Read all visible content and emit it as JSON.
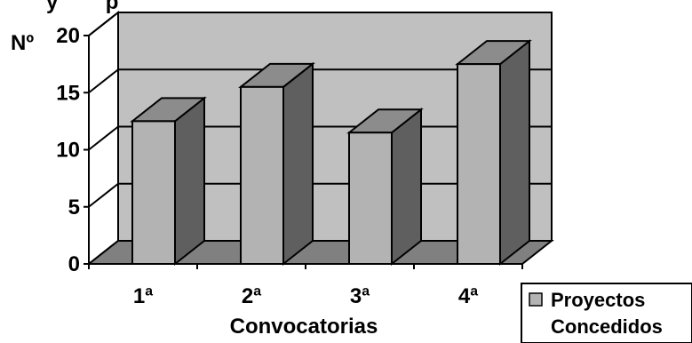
{
  "chart_data": {
    "type": "bar",
    "title_fragment": "y        p",
    "ylabel": "Nº",
    "xlabel": "Convocatorias",
    "categories": [
      "1ª",
      "2ª",
      "3ª",
      "4ª"
    ],
    "series": [
      {
        "name": "Proyectos Concedidos",
        "values": [
          12.5,
          15.5,
          11.5,
          17.5
        ]
      }
    ],
    "yticks": [
      0,
      5,
      10,
      15,
      20
    ],
    "ylim": [
      0,
      20
    ],
    "grid": true,
    "legend_position": "bottom-right",
    "style": "3d-column"
  },
  "legend": {
    "line1": "Proyectos",
    "line2": "Concedidos"
  },
  "colors": {
    "plot_back": "#c0c0c0",
    "plot_floor": "#808080",
    "side_wall": "#ffffff",
    "bar_front": "#b3b3b3",
    "bar_top": "#8c8c8c",
    "bar_side": "#5f5f5f"
  }
}
